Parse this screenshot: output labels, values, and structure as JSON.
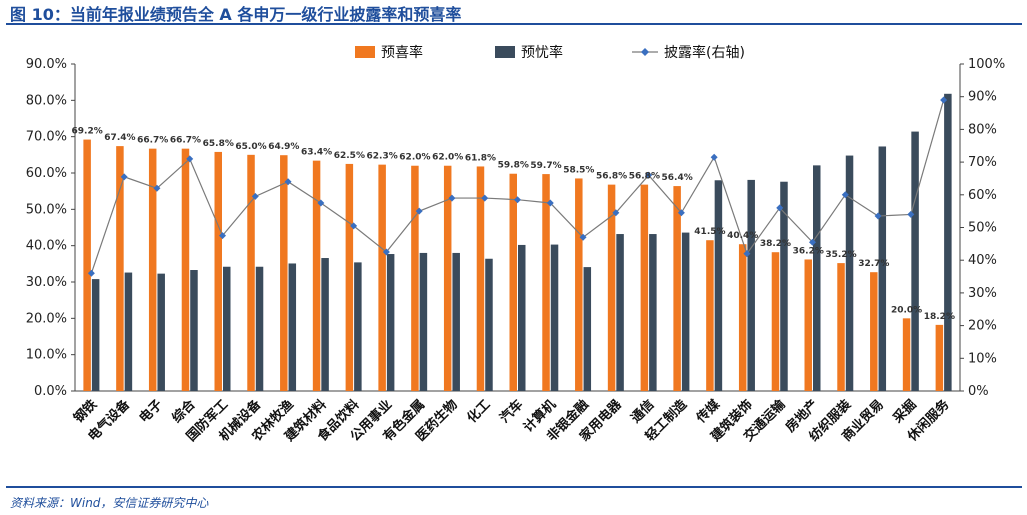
{
  "figure": {
    "title": "图 10：当前年报业绩预告全 A 各申万一级行业披露率和预喜率",
    "source": "资料来源：Wind，安信证券研究中心"
  },
  "colors": {
    "orange": "#f07820",
    "navy": "#3a4b5c",
    "line": "#7a7a7a",
    "marker": "#3a6fc0",
    "brand": "#1f4e9c"
  },
  "chart_data": {
    "type": "bar",
    "categories": [
      "钢铁",
      "电气设备",
      "电子",
      "综合",
      "国防军工",
      "机械设备",
      "农林牧渔",
      "建筑材料",
      "食品饮料",
      "公用事业",
      "有色金属",
      "医药生物",
      "化工",
      "汽车",
      "计算机",
      "非银金融",
      "家用电器",
      "通信",
      "轻工制造",
      "传媒",
      "建筑装饰",
      "交通运输",
      "房地产",
      "纺织服装",
      "商业贸易",
      "采掘",
      "休闲服务"
    ],
    "series": [
      {
        "name": "预喜率",
        "axis": "left",
        "kind": "bar",
        "values": [
          69.2,
          67.4,
          66.7,
          66.7,
          65.8,
          65.0,
          64.9,
          63.4,
          62.5,
          62.3,
          62.0,
          62.0,
          61.8,
          59.8,
          59.7,
          58.5,
          56.8,
          56.8,
          56.4,
          41.5,
          40.4,
          38.2,
          36.2,
          35.2,
          32.7,
          20.0,
          18.2
        ],
        "labels": [
          "69.2%",
          "67.4%",
          "66.7%",
          "66.7%",
          "65.8%",
          "65.0%",
          "64.9%",
          "63.4%",
          "62.5%",
          "62.3%",
          "62.0%",
          "62.0%",
          "61.8%",
          "59.8%",
          "59.7%",
          "58.5%",
          "56.8%",
          "56.8%",
          "56.4%",
          "41.5%",
          "40.4%",
          "38.2%",
          "36.2%",
          "35.2%",
          "32.7%",
          "20.0%",
          "18.2%"
        ]
      },
      {
        "name": "预忧率",
        "axis": "left",
        "kind": "bar",
        "values": [
          30.8,
          32.6,
          32.3,
          33.3,
          34.2,
          34.2,
          35.1,
          36.6,
          35.4,
          37.7,
          38.0,
          38.0,
          36.4,
          40.2,
          40.3,
          34.1,
          43.2,
          43.2,
          43.6,
          58.0,
          58.1,
          57.6,
          62.1,
          64.8,
          67.3,
          71.4,
          81.8
        ]
      },
      {
        "name": "披露率(右轴)",
        "axis": "right",
        "kind": "line",
        "values": [
          36,
          65.5,
          62,
          71,
          47.5,
          59.5,
          64,
          57.5,
          50.5,
          42.5,
          55,
          59,
          59,
          58.5,
          57.5,
          47,
          54.5,
          66,
          54.5,
          71.5,
          42,
          56,
          45.5,
          60,
          53.5,
          54,
          89
        ]
      }
    ],
    "yleft": {
      "min": 0,
      "max": 90,
      "ticks": [
        "0.0%",
        "10.0%",
        "20.0%",
        "30.0%",
        "40.0%",
        "50.0%",
        "60.0%",
        "70.0%",
        "80.0%",
        "90.0%"
      ]
    },
    "yright": {
      "min": 0,
      "max": 100,
      "ticks": [
        "0%",
        "10%",
        "20%",
        "30%",
        "40%",
        "50%",
        "60%",
        "70%",
        "80%",
        "90%",
        "100%"
      ]
    },
    "legend": [
      "预喜率",
      "预忧率",
      "披露率(右轴)"
    ],
    "legend_position": "top-center"
  }
}
